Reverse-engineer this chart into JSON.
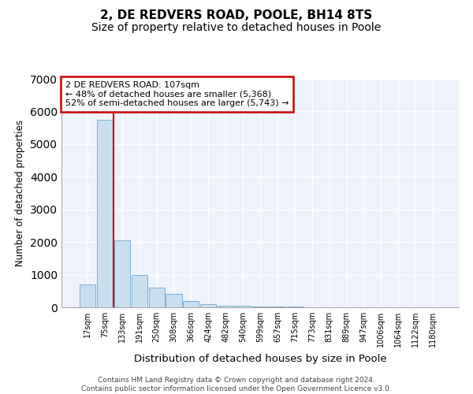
{
  "title": "2, DE REDVERS ROAD, POOLE, BH14 8TS",
  "subtitle": "Size of property relative to detached houses in Poole",
  "xlabel": "Distribution of detached houses by size in Poole",
  "ylabel": "Number of detached properties",
  "categories": [
    "17sqm",
    "75sqm",
    "133sqm",
    "191sqm",
    "250sqm",
    "308sqm",
    "366sqm",
    "424sqm",
    "482sqm",
    "540sqm",
    "599sqm",
    "657sqm",
    "715sqm",
    "773sqm",
    "831sqm",
    "889sqm",
    "947sqm",
    "1006sqm",
    "1064sqm",
    "1122sqm",
    "1180sqm"
  ],
  "values": [
    700,
    5750,
    2050,
    1000,
    600,
    400,
    200,
    100,
    60,
    40,
    30,
    20,
    15,
    5,
    3,
    2,
    1,
    1,
    0,
    0,
    0
  ],
  "bar_color": "#c8dff0",
  "bar_edge_color": "#7bafd4",
  "vline_color": "#cc0000",
  "vline_pos": 1.5,
  "annotation_line1": "2 DE REDVERS ROAD: 107sqm",
  "annotation_line2": "← 48% of detached houses are smaller (5,368)",
  "annotation_line3": "52% of semi-detached houses are larger (5,743) →",
  "annotation_box_color": "#ffffff",
  "annotation_box_edge": "#cc0000",
  "ylim": [
    0,
    7000
  ],
  "yticks": [
    0,
    1000,
    2000,
    3000,
    4000,
    5000,
    6000,
    7000
  ],
  "title_fontsize": 11,
  "subtitle_fontsize": 10,
  "footer": "Contains HM Land Registry data © Crown copyright and database right 2024.\nContains public sector information licensed under the Open Government Licence v3.0.",
  "background_color": "#ffffff",
  "plot_bg_color": "#eef2fa"
}
